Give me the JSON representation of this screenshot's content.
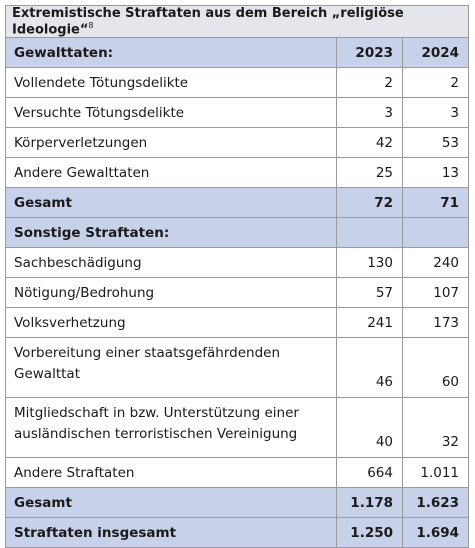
{
  "table": {
    "title": "Extremistische Straftaten aus dem Bereich „religiöse Ideologie“",
    "footnote": "8",
    "columns": [
      "2023",
      "2024"
    ],
    "sections": [
      {
        "label": "Gewalttaten:",
        "rows": [
          {
            "label": "Vollendete Tötungsdelikte",
            "values": [
              "2",
              "2"
            ]
          },
          {
            "label": "Versuchte Tötungsdelikte",
            "values": [
              "3",
              "3"
            ]
          },
          {
            "label": "Körperverletzungen",
            "values": [
              "42",
              "53"
            ]
          },
          {
            "label": "Andere Gewalttaten",
            "values": [
              "25",
              "13"
            ]
          }
        ],
        "total": {
          "label": "Gesamt",
          "values": [
            "72",
            "71"
          ]
        }
      },
      {
        "label": "Sonstige Straftaten:",
        "rows": [
          {
            "label": "Sachbeschädigung",
            "values": [
              "130",
              "240"
            ]
          },
          {
            "label": "Nötigung/Bedrohung",
            "values": [
              "57",
              "107"
            ]
          },
          {
            "label": "Volksverhetzung",
            "values": [
              "241",
              "173"
            ]
          },
          {
            "label": "Vorbereitung einer staatsgefährdenden Gewalttat",
            "values": [
              "46",
              "60"
            ]
          },
          {
            "label": "Mitgliedschaft in bzw. Unterstützung einer ausländischen terroristischen Vereinigung",
            "values": [
              "40",
              "32"
            ]
          },
          {
            "label": "Andere Straftaten",
            "values": [
              "664",
              "1.011"
            ]
          }
        ],
        "total": {
          "label": "Gesamt",
          "values": [
            "1.178",
            "1.623"
          ]
        }
      }
    ],
    "grand_total": {
      "label": "Straftaten insgesamt",
      "values": [
        "1.250",
        "1.694"
      ]
    }
  }
}
